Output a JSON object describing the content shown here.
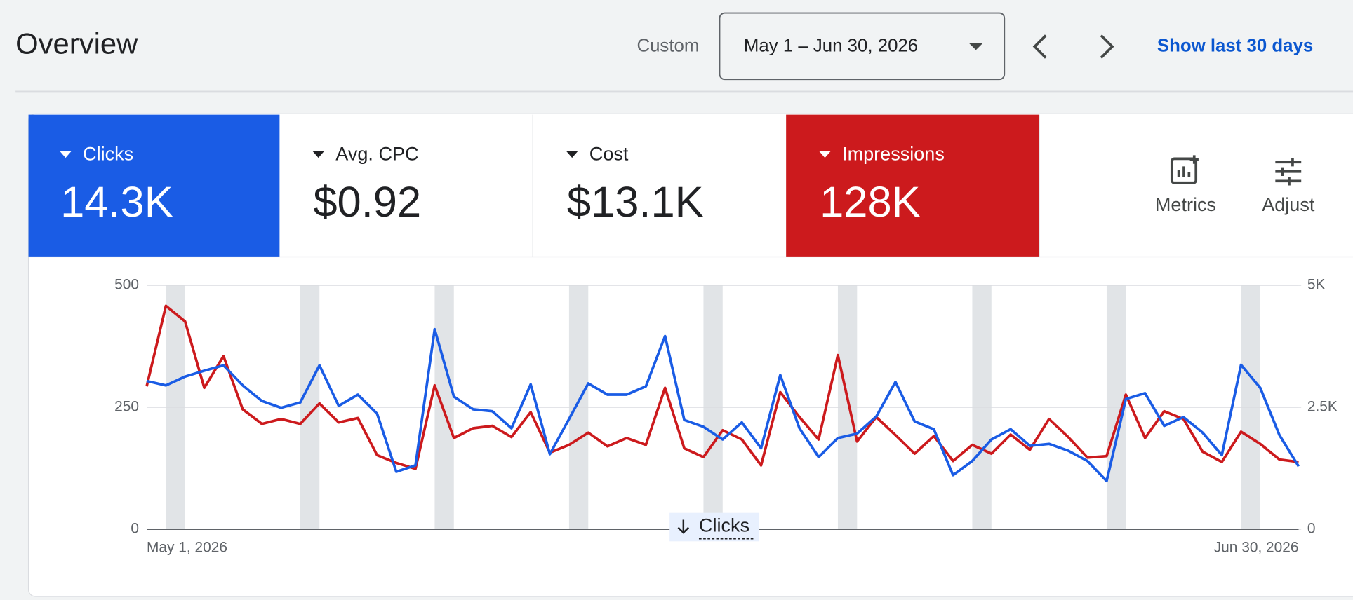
{
  "header": {
    "title": "Overview",
    "range_type": "Custom",
    "date_range": "May 1 – Jun 30, 2026",
    "show_last": "Show last 30 days"
  },
  "metrics": [
    {
      "label": "Clicks",
      "value": "14.3K"
    },
    {
      "label": "Avg. CPC",
      "value": "$0.92"
    },
    {
      "label": "Cost",
      "value": "$13.1K"
    },
    {
      "label": "Impressions",
      "value": "128K"
    }
  ],
  "tools": [
    "Metrics",
    "Adjust"
  ],
  "chart_data": {
    "type": "line",
    "categories": [
      "May 1, 2026",
      null,
      null,
      null,
      null,
      null,
      null,
      null,
      null,
      null,
      null,
      null,
      null,
      null,
      null,
      null,
      null,
      null,
      null,
      null,
      null,
      null,
      null,
      null,
      null,
      null,
      null,
      null,
      null,
      null,
      null,
      null,
      null,
      null,
      null,
      null,
      null,
      null,
      null,
      null,
      null,
      null,
      null,
      null,
      null,
      null,
      null,
      null,
      null,
      null,
      null,
      null,
      null,
      null,
      null,
      null,
      null,
      null,
      null,
      null,
      "Jun 30, 2026"
    ],
    "series": [
      {
        "name": "Clicks",
        "color": "#1a5ce5",
        "values": [
          304,
          295,
          313,
          325,
          336,
          295,
          263,
          249,
          260,
          336,
          253,
          276,
          237,
          118,
          131,
          410,
          272,
          246,
          242,
          207,
          297,
          154,
          226,
          299,
          276,
          276,
          293,
          396,
          224,
          210,
          184,
          219,
          166,
          316,
          207,
          148,
          187,
          196,
          231,
          302,
          221,
          205,
          111,
          140,
          184,
          205,
          171,
          175,
          161,
          140,
          99,
          267,
          279,
          212,
          230,
          198,
          152,
          337,
          290,
          193,
          129
        ]
      },
      {
        "name": "Impressions",
        "color": "#cc1a1d",
        "axis": "y2",
        "values": [
          2930,
          4580,
          4260,
          2900,
          3550,
          2460,
          2160,
          2260,
          2160,
          2580,
          2190,
          2280,
          1520,
          1360,
          1240,
          2950,
          1870,
          2070,
          2120,
          1890,
          2400,
          1570,
          1730,
          1980,
          1700,
          1870,
          1730,
          2900,
          1660,
          1480,
          2030,
          1840,
          1310,
          2810,
          2300,
          1840,
          3570,
          1800,
          2300,
          1930,
          1550,
          1910,
          1400,
          1730,
          1550,
          1940,
          1630,
          2260,
          1890,
          1470,
          1500,
          2760,
          1870,
          2420,
          2260,
          1590,
          1380,
          2000,
          1750,
          1430,
          1380
        ]
      }
    ],
    "ylim": [
      0,
      500
    ],
    "yticks": [
      0,
      250,
      500
    ],
    "y2lim": [
      0,
      5000
    ],
    "y2ticks": [
      0,
      {
        "value": 2500,
        "label": "2.5K"
      },
      {
        "value": 5000,
        "label": "5K"
      }
    ],
    "grid": true
  }
}
